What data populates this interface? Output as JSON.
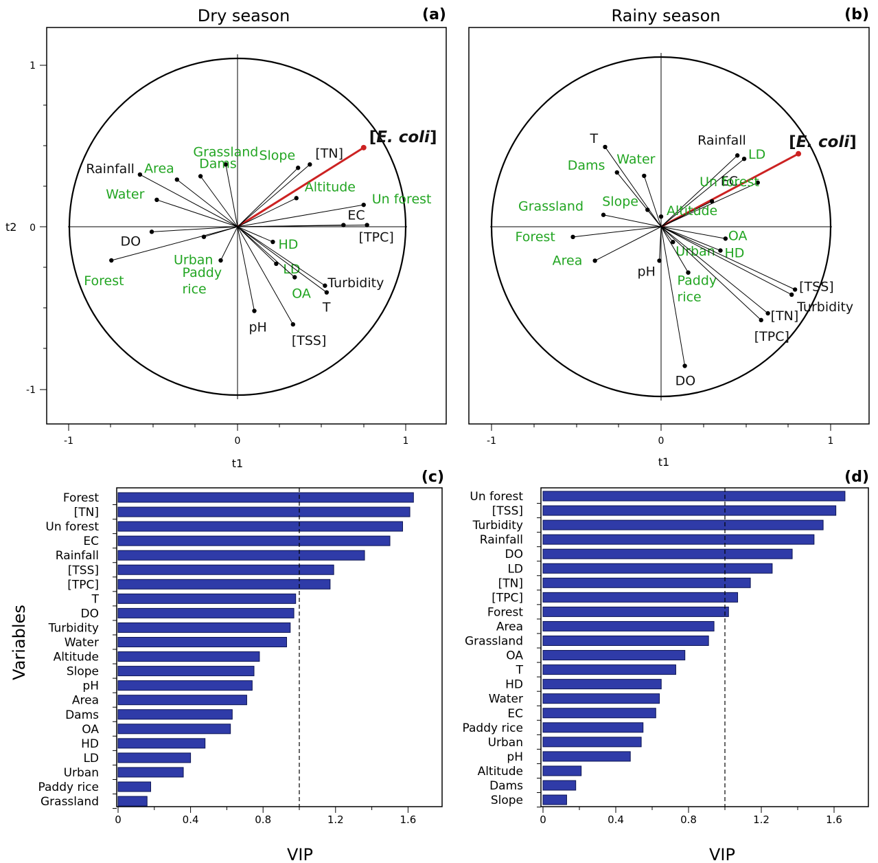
{
  "colors": {
    "green_label": "#22a522",
    "black_label": "#111111",
    "ecoli_vector": "#cc2222",
    "bar_fill": "#2f3ba8",
    "bar_stroke": "#0c1452"
  },
  "panels": {
    "a": {
      "letter": "(a)",
      "title": "Dry season",
      "xlabel": "t1",
      "ylabel": "t2",
      "xticks": [
        "-1",
        "0",
        "1"
      ],
      "yticks": [
        "1",
        "0",
        "-1"
      ]
    },
    "b": {
      "letter": "(b)",
      "title": "Rainy season",
      "xlabel": "t1",
      "xticks": [
        "-1",
        "0",
        "1"
      ]
    },
    "c": {
      "letter": "(c)",
      "xlabel": "VIP",
      "ylabel": "Variables",
      "xticks": [
        "0",
        "0.4",
        "0.8",
        "1.2",
        "1.6"
      ]
    },
    "d": {
      "letter": "(d)",
      "xlabel": "VIP",
      "xticks": [
        "0",
        "0.4",
        "0.8",
        "1.2",
        "1.6"
      ]
    }
  },
  "chart_data": [
    {
      "type": "scatter",
      "panel": "a",
      "title": "Dry season",
      "xlabel": "t1",
      "ylabel": "t2",
      "xlim": [
        -1.0,
        1.2
      ],
      "ylim": [
        -1.22,
        1.2
      ],
      "unit_circle": true,
      "points": [
        {
          "label": "[E. coli]",
          "x": 0.75,
          "y": 0.47,
          "color": "red",
          "highlight": true
        },
        {
          "label": "Grassland",
          "x": -0.07,
          "y": 0.37,
          "color": "green"
        },
        {
          "label": "Slope",
          "x": 0.36,
          "y": 0.35,
          "color": "green"
        },
        {
          "label": "[TN]",
          "x": 0.43,
          "y": 0.37,
          "color": "black"
        },
        {
          "label": "Area",
          "x": -0.36,
          "y": 0.28,
          "color": "green"
        },
        {
          "label": "Dams",
          "x": -0.22,
          "y": 0.3,
          "color": "green"
        },
        {
          "label": "Rainfall",
          "x": -0.58,
          "y": 0.31,
          "color": "black"
        },
        {
          "label": "Altitude",
          "x": 0.35,
          "y": 0.17,
          "color": "green"
        },
        {
          "label": "Water",
          "x": -0.48,
          "y": 0.16,
          "color": "green"
        },
        {
          "label": "Un forest",
          "x": 0.75,
          "y": 0.13,
          "color": "green"
        },
        {
          "label": "EC",
          "x": 0.63,
          "y": 0.01,
          "color": "black"
        },
        {
          "label": "[TPC]",
          "x": 0.77,
          "y": 0.01,
          "color": "black"
        },
        {
          "label": "DO",
          "x": -0.51,
          "y": -0.03,
          "color": "black"
        },
        {
          "label": "Urban",
          "x": -0.2,
          "y": -0.06,
          "color": "green"
        },
        {
          "label": "HD",
          "x": 0.21,
          "y": -0.09,
          "color": "green"
        },
        {
          "label": "Forest",
          "x": -0.75,
          "y": -0.2,
          "color": "green"
        },
        {
          "label": "Paddy rice",
          "x": -0.1,
          "y": -0.2,
          "color": "green"
        },
        {
          "label": "LD",
          "x": 0.23,
          "y": -0.22,
          "color": "green"
        },
        {
          "label": "OA",
          "x": 0.34,
          "y": -0.3,
          "color": "green"
        },
        {
          "label": "Turbidity",
          "x": 0.52,
          "y": -0.35,
          "color": "black"
        },
        {
          "label": "T",
          "x": 0.53,
          "y": -0.39,
          "color": "black"
        },
        {
          "label": "pH",
          "x": 0.1,
          "y": -0.5,
          "color": "black"
        },
        {
          "label": "[TSS]",
          "x": 0.33,
          "y": -0.58,
          "color": "black"
        }
      ]
    },
    {
      "type": "scatter",
      "panel": "b",
      "title": "Rainy season",
      "xlabel": "t1",
      "xlim": [
        -1.0,
        1.2
      ],
      "ylim": [
        -1.22,
        1.2
      ],
      "unit_circle": true,
      "points": [
        {
          "label": "[E. coli]",
          "x": 0.81,
          "y": 0.43,
          "color": "red",
          "highlight": true
        },
        {
          "label": "T",
          "x": -0.33,
          "y": 0.47,
          "color": "black"
        },
        {
          "label": "Rainfall",
          "x": 0.45,
          "y": 0.42,
          "color": "black"
        },
        {
          "label": "LD",
          "x": 0.49,
          "y": 0.4,
          "color": "green"
        },
        {
          "label": "Water",
          "x": -0.1,
          "y": 0.3,
          "color": "green"
        },
        {
          "label": "Dams",
          "x": -0.26,
          "y": 0.32,
          "color": "green"
        },
        {
          "label": "EC",
          "x": 0.57,
          "y": 0.26,
          "color": "black"
        },
        {
          "label": "Un forest",
          "x": 0.3,
          "y": 0.15,
          "color": "green"
        },
        {
          "label": "Slope",
          "x": -0.08,
          "y": 0.1,
          "color": "green"
        },
        {
          "label": "Altitude",
          "x": 0.0,
          "y": 0.06,
          "color": "green"
        },
        {
          "label": "Grassland",
          "x": -0.34,
          "y": 0.07,
          "color": "green"
        },
        {
          "label": "Forest",
          "x": -0.52,
          "y": -0.06,
          "color": "green"
        },
        {
          "label": "OA",
          "x": 0.38,
          "y": -0.07,
          "color": "green"
        },
        {
          "label": "HD",
          "x": 0.35,
          "y": -0.14,
          "color": "green"
        },
        {
          "label": "Urban",
          "x": 0.07,
          "y": -0.09,
          "color": "green"
        },
        {
          "label": "Area",
          "x": -0.39,
          "y": -0.2,
          "color": "green"
        },
        {
          "label": "pH",
          "x": -0.01,
          "y": -0.2,
          "color": "black"
        },
        {
          "label": "Paddy rice",
          "x": 0.16,
          "y": -0.27,
          "color": "green"
        },
        {
          "label": "[TSS]",
          "x": 0.79,
          "y": -0.37,
          "color": "black"
        },
        {
          "label": "Turbidity",
          "x": 0.77,
          "y": -0.4,
          "color": "black"
        },
        {
          "label": "[TN]",
          "x": 0.63,
          "y": -0.51,
          "color": "black"
        },
        {
          "label": "[TPC]",
          "x": 0.59,
          "y": -0.55,
          "color": "black"
        },
        {
          "label": "DO",
          "x": 0.14,
          "y": -0.82,
          "color": "black"
        }
      ]
    },
    {
      "type": "bar",
      "panel": "c",
      "orientation": "horizontal",
      "xlabel": "VIP",
      "ylabel": "Variables",
      "xlim": [
        0,
        1.77
      ],
      "reference_line": 1.0,
      "categories": [
        "Forest",
        "[TN]",
        "Un forest",
        "EC",
        "Rainfall",
        "[TSS]",
        "[TPC]",
        "T",
        "DO",
        "Turbidity",
        "Water",
        "Altitude",
        "Slope",
        "pH",
        "Area",
        "Dams",
        "OA",
        "HD",
        "LD",
        "Urban",
        "Paddy rice",
        "Grassland"
      ],
      "values": [
        1.63,
        1.61,
        1.57,
        1.5,
        1.36,
        1.19,
        1.17,
        0.98,
        0.97,
        0.95,
        0.93,
        0.78,
        0.75,
        0.74,
        0.71,
        0.63,
        0.62,
        0.48,
        0.4,
        0.36,
        0.18,
        0.16
      ]
    },
    {
      "type": "bar",
      "panel": "d",
      "orientation": "horizontal",
      "xlabel": "VIP",
      "xlim": [
        0,
        1.77
      ],
      "reference_line": 1.0,
      "categories": [
        "Un forest",
        "[TSS]",
        "Turbidity",
        "Rainfall",
        "DO",
        "LD",
        "[TN]",
        "[TPC]",
        "Forest",
        "Area",
        "Grassland",
        "OA",
        "T",
        "HD",
        "Water",
        "EC",
        "Paddy rice",
        "Urban",
        "pH",
        "Altitude",
        "Dams",
        "Slope"
      ],
      "values": [
        1.66,
        1.61,
        1.54,
        1.49,
        1.37,
        1.26,
        1.14,
        1.07,
        1.02,
        0.94,
        0.91,
        0.78,
        0.73,
        0.65,
        0.64,
        0.62,
        0.55,
        0.54,
        0.48,
        0.21,
        0.18,
        0.13
      ]
    }
  ]
}
